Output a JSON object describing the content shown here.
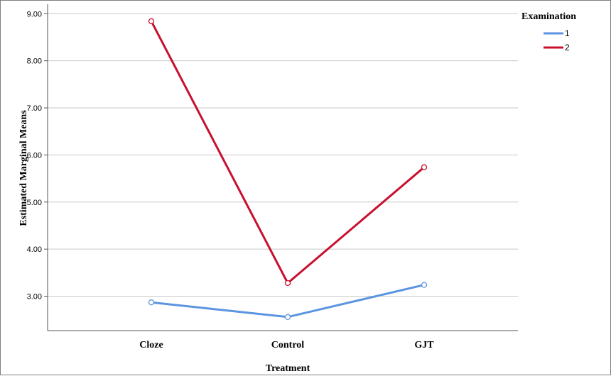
{
  "chart_data": {
    "type": "line",
    "xlabel": "Treatment",
    "ylabel": "Estimated Marginal Means",
    "categories": [
      "Cloze",
      "Control",
      "GJT"
    ],
    "ylim": [
      2.27,
      9.2
    ],
    "yticks": [
      "3.00",
      "4.00",
      "5.00",
      "6.00",
      "7.00",
      "8.00",
      "9.00"
    ],
    "grid": true,
    "legend": {
      "title": "Examination",
      "position": "top-right"
    },
    "series": [
      {
        "name": "1",
        "color": "#5b94e0",
        "values": [
          2.87,
          2.56,
          3.24
        ]
      },
      {
        "name": "2",
        "color": "#c8102e",
        "values": [
          8.84,
          3.28,
          5.74
        ]
      }
    ]
  }
}
